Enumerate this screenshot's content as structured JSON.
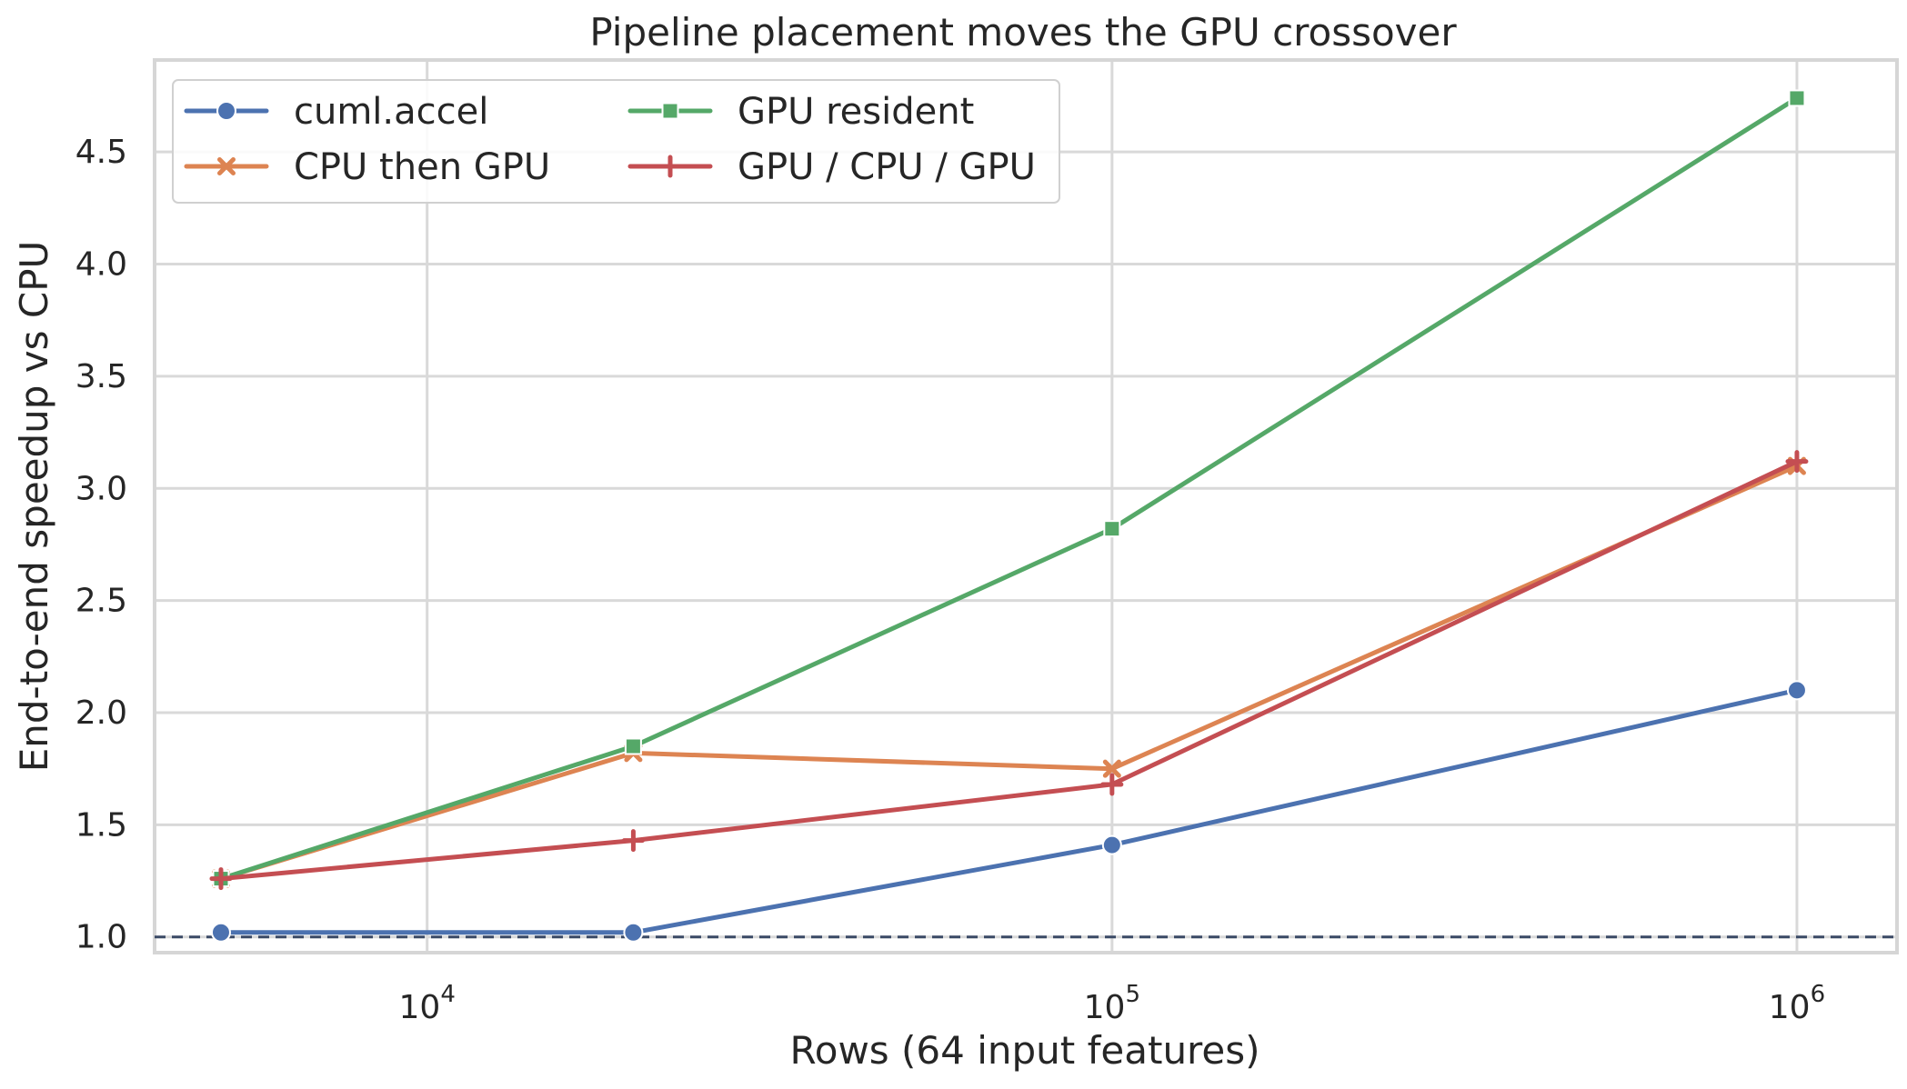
{
  "chart_data": {
    "type": "line",
    "title": "Pipeline placement moves the GPU crossover",
    "xlabel": "Rows (64 input features)",
    "ylabel": "End-to-end speedup vs CPU",
    "x_scale": "log",
    "x": [
      5000,
      20000,
      100000,
      1000000
    ],
    "xlim": [
      4000,
      1400000
    ],
    "ylim": [
      0.93,
      4.91
    ],
    "grid": true,
    "legend": "top-left",
    "x_ticks": [
      {
        "value": 10000,
        "base": "10",
        "exp": "4"
      },
      {
        "value": 100000,
        "base": "10",
        "exp": "5"
      },
      {
        "value": 1000000,
        "base": "10",
        "exp": "6"
      }
    ],
    "y_ticks": [
      {
        "value": 1.0,
        "label": "1.0"
      },
      {
        "value": 1.5,
        "label": "1.5"
      },
      {
        "value": 2.0,
        "label": "2.0"
      },
      {
        "value": 2.5,
        "label": "2.5"
      },
      {
        "value": 3.0,
        "label": "3.0"
      },
      {
        "value": 3.5,
        "label": "3.5"
      },
      {
        "value": 4.0,
        "label": "4.0"
      },
      {
        "value": 4.5,
        "label": "4.5"
      }
    ],
    "reference_line": {
      "y": 1.0,
      "color": "#3b4a66",
      "style": "dashed"
    },
    "series": [
      {
        "name": "cuml.accel",
        "color": "#4c72b0",
        "marker": "circle",
        "values": [
          1.02,
          1.02,
          1.41,
          2.1
        ]
      },
      {
        "name": "CPU then GPU",
        "color": "#dd8452",
        "marker": "x",
        "values": [
          1.26,
          1.82,
          1.75,
          3.1
        ]
      },
      {
        "name": "GPU resident",
        "color": "#55a868",
        "marker": "square",
        "values": [
          1.26,
          1.85,
          2.82,
          4.74
        ]
      },
      {
        "name": "GPU / CPU / GPU",
        "color": "#c44e52",
        "marker": "plus",
        "values": [
          1.26,
          1.43,
          1.68,
          3.12
        ]
      }
    ]
  }
}
